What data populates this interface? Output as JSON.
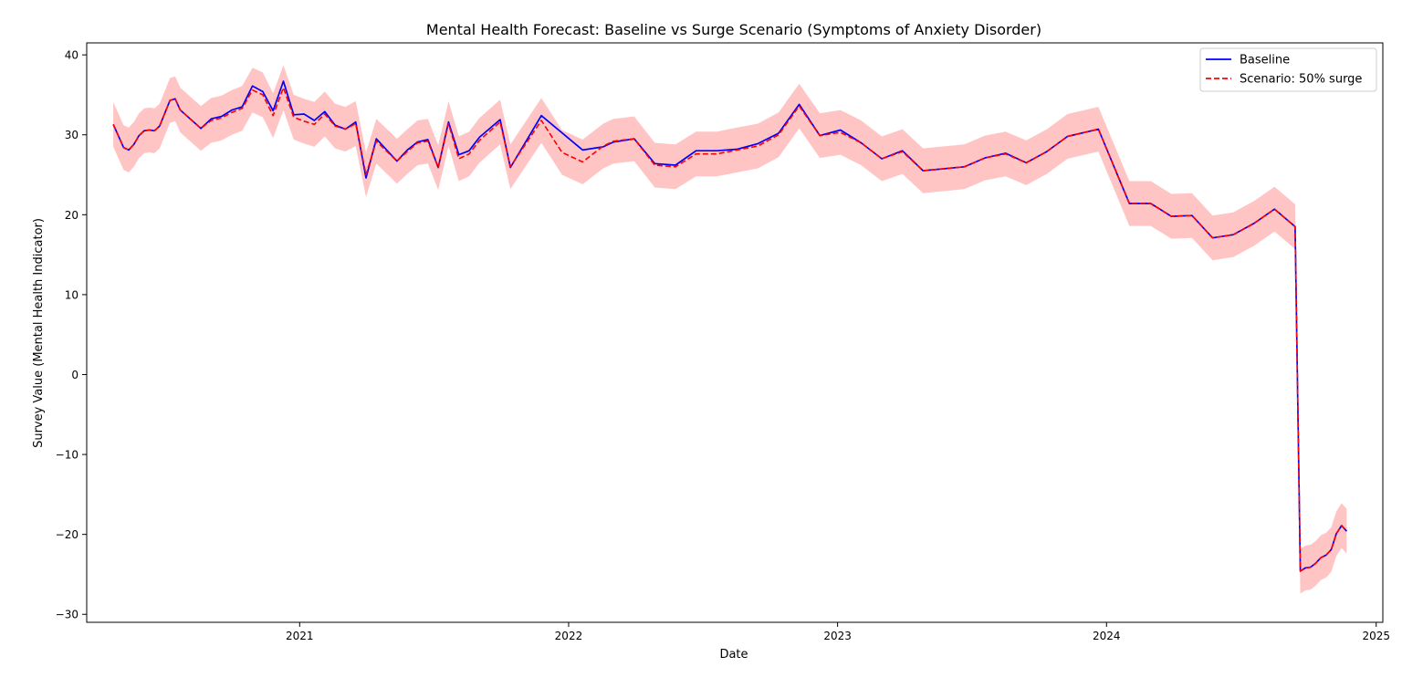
{
  "chart_data": {
    "type": "line",
    "title": "Mental Health Forecast: Baseline vs Surge Scenario (Symptoms of Anxiety Disorder)",
    "xlabel": "Date",
    "ylabel": "Survey Value (Mental Health Indicator)",
    "xlim": [
      "2020-03-18",
      "2025-01-10"
    ],
    "ylim": [
      -31,
      41.5
    ],
    "x_ticks": [
      "2021-01-01",
      "2022-01-01",
      "2023-01-01",
      "2024-01-01",
      "2025-01-01"
    ],
    "x_tick_labels": [
      "2021",
      "2022",
      "2023",
      "2024",
      "2025"
    ],
    "y_ticks": [
      -30,
      -20,
      -10,
      0,
      10,
      20,
      30,
      40
    ],
    "y_tick_labels": [
      "−30",
      "−20",
      "−10",
      "0",
      "10",
      "20",
      "30",
      "40"
    ],
    "grid": false,
    "legend_position": "top-right",
    "band": {
      "name": "",
      "color": "#ffbbbb",
      "opacity": 0.85
    },
    "series": [
      {
        "name": "Baseline",
        "color": "#0000ff",
        "style": "solid",
        "points": [
          [
            "2020-04-23",
            31.3
          ],
          [
            "2020-05-07",
            28.4
          ],
          [
            "2020-05-14",
            28.1
          ],
          [
            "2020-05-21",
            28.8
          ],
          [
            "2020-05-28",
            29.9
          ],
          [
            "2020-06-04",
            30.5
          ],
          [
            "2020-06-11",
            30.6
          ],
          [
            "2020-06-18",
            30.5
          ],
          [
            "2020-06-25",
            31.1
          ],
          [
            "2020-07-09",
            34.3
          ],
          [
            "2020-07-16",
            34.5
          ],
          [
            "2020-07-23",
            33.1
          ],
          [
            "2020-08-20",
            30.8
          ],
          [
            "2020-09-03",
            32.0
          ],
          [
            "2020-09-17",
            32.3
          ],
          [
            "2020-10-01",
            33.1
          ],
          [
            "2020-10-15",
            33.5
          ],
          [
            "2020-10-29",
            36.1
          ],
          [
            "2020-11-12",
            35.4
          ],
          [
            "2020-11-26",
            33.0
          ],
          [
            "2020-12-10",
            36.7
          ],
          [
            "2020-12-24",
            32.5
          ],
          [
            "2021-01-07",
            32.6
          ],
          [
            "2021-01-21",
            31.8
          ],
          [
            "2021-02-04",
            32.9
          ],
          [
            "2021-02-18",
            31.2
          ],
          [
            "2021-03-04",
            30.7
          ],
          [
            "2021-03-18",
            31.6
          ],
          [
            "2021-04-01",
            24.6
          ],
          [
            "2021-04-15",
            29.5
          ],
          [
            "2021-05-13",
            26.7
          ],
          [
            "2021-05-27",
            28.1
          ],
          [
            "2021-06-10",
            29.1
          ],
          [
            "2021-06-24",
            29.4
          ],
          [
            "2021-07-08",
            25.9
          ],
          [
            "2021-07-22",
            31.6
          ],
          [
            "2021-08-05",
            27.5
          ],
          [
            "2021-08-19",
            28.0
          ],
          [
            "2021-09-02",
            29.7
          ],
          [
            "2021-09-30",
            31.9
          ],
          [
            "2021-10-14",
            25.9
          ],
          [
            "2021-11-25",
            32.4
          ],
          [
            "2022-01-20",
            28.1
          ],
          [
            "2022-02-17",
            28.5
          ],
          [
            "2022-03-03",
            29.1
          ],
          [
            "2022-03-31",
            29.5
          ],
          [
            "2022-04-28",
            26.4
          ],
          [
            "2022-05-26",
            26.2
          ],
          [
            "2022-06-23",
            28.0
          ],
          [
            "2022-07-21",
            28.0
          ],
          [
            "2022-08-18",
            28.2
          ],
          [
            "2022-09-15",
            28.9
          ],
          [
            "2022-10-13",
            30.2
          ],
          [
            "2022-11-10",
            33.8
          ],
          [
            "2022-12-08",
            29.9
          ],
          [
            "2023-01-05",
            30.6
          ],
          [
            "2023-02-02",
            29.0
          ],
          [
            "2023-03-02",
            27.0
          ],
          [
            "2023-03-30",
            28.0
          ],
          [
            "2023-04-27",
            25.5
          ],
          [
            "2023-06-22",
            26.0
          ],
          [
            "2023-07-20",
            27.1
          ],
          [
            "2023-08-17",
            27.7
          ],
          [
            "2023-09-14",
            26.5
          ],
          [
            "2023-10-12",
            27.9
          ],
          [
            "2023-11-09",
            29.8
          ],
          [
            "2023-12-21",
            30.7
          ],
          [
            "2024-02-01",
            21.4
          ],
          [
            "2024-03-01",
            21.4
          ],
          [
            "2024-03-29",
            19.8
          ],
          [
            "2024-04-26",
            19.9
          ],
          [
            "2024-05-24",
            17.1
          ],
          [
            "2024-06-21",
            17.5
          ],
          [
            "2024-07-19",
            18.9
          ],
          [
            "2024-08-16",
            20.7
          ],
          [
            "2024-09-13",
            18.5
          ],
          [
            "2024-09-20",
            -24.6
          ],
          [
            "2024-09-27",
            -24.2
          ],
          [
            "2024-10-04",
            -24.1
          ],
          [
            "2024-10-11",
            -23.6
          ],
          [
            "2024-10-18",
            -22.9
          ],
          [
            "2024-10-25",
            -22.6
          ],
          [
            "2024-11-01",
            -21.9
          ],
          [
            "2024-11-08",
            -19.9
          ],
          [
            "2024-11-15",
            -18.9
          ],
          [
            "2024-11-22",
            -19.6
          ]
        ]
      },
      {
        "name": "Scenario: 50% surge",
        "color": "#ff0000",
        "style": "dashed",
        "points": [
          [
            "2020-04-23",
            31.3
          ],
          [
            "2020-05-07",
            28.4
          ],
          [
            "2020-05-14",
            28.1
          ],
          [
            "2020-05-21",
            28.8
          ],
          [
            "2020-05-28",
            29.9
          ],
          [
            "2020-06-04",
            30.5
          ],
          [
            "2020-06-11",
            30.6
          ],
          [
            "2020-06-18",
            30.5
          ],
          [
            "2020-06-25",
            31.1
          ],
          [
            "2020-07-09",
            34.3
          ],
          [
            "2020-07-16",
            34.5
          ],
          [
            "2020-07-23",
            33.1
          ],
          [
            "2020-08-20",
            30.8
          ],
          [
            "2020-09-03",
            31.8
          ],
          [
            "2020-09-17",
            32.1
          ],
          [
            "2020-10-01",
            32.8
          ],
          [
            "2020-10-15",
            33.3
          ],
          [
            "2020-10-29",
            35.6
          ],
          [
            "2020-11-12",
            35.0
          ],
          [
            "2020-11-26",
            32.4
          ],
          [
            "2020-12-10",
            35.9
          ],
          [
            "2020-12-24",
            32.2
          ],
          [
            "2021-01-07",
            31.7
          ],
          [
            "2021-01-21",
            31.3
          ],
          [
            "2021-02-04",
            32.6
          ],
          [
            "2021-02-18",
            31.1
          ],
          [
            "2021-03-04",
            30.7
          ],
          [
            "2021-03-18",
            31.4
          ],
          [
            "2021-04-01",
            25.0
          ],
          [
            "2021-04-15",
            29.2
          ],
          [
            "2021-05-13",
            26.7
          ],
          [
            "2021-05-27",
            27.9
          ],
          [
            "2021-06-10",
            29.0
          ],
          [
            "2021-06-24",
            29.2
          ],
          [
            "2021-07-08",
            25.9
          ],
          [
            "2021-07-22",
            31.4
          ],
          [
            "2021-08-05",
            27.0
          ],
          [
            "2021-08-19",
            27.6
          ],
          [
            "2021-09-02",
            29.3
          ],
          [
            "2021-09-30",
            31.6
          ],
          [
            "2021-10-14",
            26.0
          ],
          [
            "2021-11-25",
            31.8
          ],
          [
            "2021-12-23",
            27.8
          ],
          [
            "2022-01-20",
            26.6
          ],
          [
            "2022-02-17",
            28.6
          ],
          [
            "2022-03-03",
            29.2
          ],
          [
            "2022-03-31",
            29.5
          ],
          [
            "2022-04-28",
            26.2
          ],
          [
            "2022-05-26",
            26.0
          ],
          [
            "2022-06-23",
            27.6
          ],
          [
            "2022-07-21",
            27.6
          ],
          [
            "2022-08-18",
            28.1
          ],
          [
            "2022-09-15",
            28.6
          ],
          [
            "2022-10-13",
            30.0
          ],
          [
            "2022-11-10",
            33.6
          ],
          [
            "2022-12-08",
            29.9
          ],
          [
            "2023-01-05",
            30.3
          ],
          [
            "2023-02-02",
            29.0
          ],
          [
            "2023-03-02",
            27.0
          ],
          [
            "2023-03-30",
            27.9
          ],
          [
            "2023-04-27",
            25.5
          ],
          [
            "2023-06-22",
            26.0
          ],
          [
            "2023-07-20",
            27.1
          ],
          [
            "2023-08-17",
            27.6
          ],
          [
            "2023-09-14",
            26.5
          ],
          [
            "2023-10-12",
            27.9
          ],
          [
            "2023-11-09",
            29.8
          ],
          [
            "2023-12-21",
            30.7
          ],
          [
            "2024-02-01",
            21.4
          ],
          [
            "2024-03-01",
            21.4
          ],
          [
            "2024-03-29",
            19.8
          ],
          [
            "2024-04-26",
            19.9
          ],
          [
            "2024-05-24",
            17.1
          ],
          [
            "2024-06-21",
            17.5
          ],
          [
            "2024-07-19",
            18.9
          ],
          [
            "2024-08-16",
            20.7
          ],
          [
            "2024-09-13",
            18.5
          ],
          [
            "2024-09-20",
            -24.6
          ],
          [
            "2024-09-27",
            -24.2
          ],
          [
            "2024-10-04",
            -24.1
          ],
          [
            "2024-10-11",
            -23.6
          ],
          [
            "2024-10-18",
            -22.9
          ],
          [
            "2024-10-25",
            -22.6
          ],
          [
            "2024-11-01",
            -21.9
          ],
          [
            "2024-11-08",
            -19.9
          ],
          [
            "2024-11-15",
            -18.9
          ],
          [
            "2024-11-22",
            -19.6
          ]
        ]
      }
    ]
  }
}
